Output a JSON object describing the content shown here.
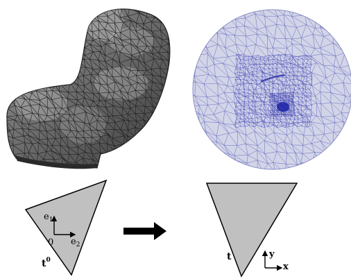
{
  "colors": {
    "mesh_fill": "#7d7d7d",
    "mesh_edge": "#1f1f1f",
    "disk_fill": "#cfd2e6",
    "disk_edge": "#3a3fb5",
    "triangle_fill": "#c0c0c0",
    "boundary": "#c8782a"
  },
  "panels": {
    "surface_mesh": {
      "icon": "3d-triangle-mesh"
    },
    "parameterized_disk": {
      "icon": "disk-triangulation"
    }
  },
  "left_triangle": {
    "label_t": "t",
    "label_t_sup": "0",
    "axis_e1": "e",
    "axis_e1_sub": "1",
    "axis_e2": "e",
    "axis_e2_sub": "2",
    "origin": "0"
  },
  "arrow": {
    "icon": "right-arrow-icon"
  },
  "right_triangle": {
    "label_t": "t",
    "axis_y": "y",
    "axis_x": "x"
  }
}
